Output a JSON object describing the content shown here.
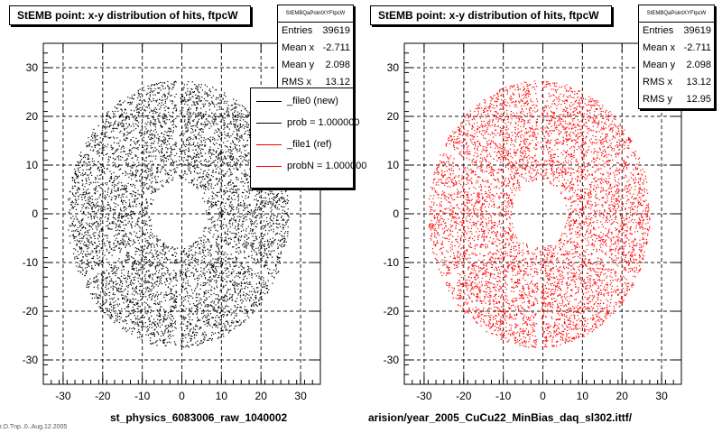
{
  "chart_data": [
    {
      "type": "scatter",
      "title": "StEMB point: x-y distribution of hits, ftpcW",
      "xlabel": "st_physics_6083006_raw_1040002",
      "ylabel": "",
      "xlim": [
        -35,
        35
      ],
      "ylim": [
        -35,
        35
      ],
      "x_ticks": [
        "-30",
        "-20",
        "-10",
        "0",
        "10",
        "20",
        "30"
      ],
      "y_ticks": [
        "30",
        "20",
        "10",
        "0",
        "-10",
        "-20",
        "-30"
      ],
      "grid": true,
      "marker_color": "#000000",
      "distribution": {
        "shape": "ring",
        "center": [
          -1,
          0
        ],
        "inner_radius": 7,
        "outer_radius": 28,
        "sector_gaps_deg": [
          90,
          150,
          210,
          270,
          330,
          30
        ]
      },
      "stats": {
        "title": "StEMBQaPointXYFtpcW",
        "rows": [
          {
            "label": "Entries",
            "value": "39619"
          },
          {
            "label": "Mean x",
            "value": "-2.711"
          },
          {
            "label": "Mean y",
            "value": "2.098"
          },
          {
            "label": "RMS x",
            "value": "13.12"
          }
        ]
      },
      "legend": [
        {
          "label": "_file0 (new)",
          "color": "#000000"
        },
        {
          "label": "prob = 1.000000",
          "color": "#000000"
        },
        {
          "label": "_file1 (ref)",
          "color": "#ff0000"
        },
        {
          "label": "probN = 1.000000",
          "color": "#ff0000"
        }
      ]
    },
    {
      "type": "scatter",
      "title": "StEMB point: x-y distribution of hits, ftpcW",
      "xlabel": "arision/year_2005_CuCu22_MinBias_daq_sl302.ittf/",
      "ylabel": "",
      "xlim": [
        -35,
        35
      ],
      "ylim": [
        -35,
        35
      ],
      "x_ticks": [
        "-30",
        "-20",
        "-10",
        "0",
        "10",
        "20",
        "30"
      ],
      "y_ticks": [
        "30",
        "20",
        "10",
        "0",
        "-10",
        "-20",
        "-30"
      ],
      "grid": true,
      "marker_color": "#ff0000",
      "distribution": {
        "shape": "ring",
        "center": [
          -1,
          0
        ],
        "inner_radius": 7,
        "outer_radius": 28,
        "sector_gaps_deg": [
          90,
          150,
          210,
          270,
          330,
          30
        ]
      },
      "stats": {
        "title": "StEMBQaPointXYFtpcW",
        "rows": [
          {
            "label": "Entries",
            "value": "39619"
          },
          {
            "label": "Mean x",
            "value": "-2.711"
          },
          {
            "label": "Mean y",
            "value": "2.098"
          },
          {
            "label": "RMS x",
            "value": "13.12"
          },
          {
            "label": "RMS y",
            "value": "12.95"
          }
        ]
      }
    }
  ],
  "footer_text": "r.D.Tnp..0..Aug.12.2005"
}
